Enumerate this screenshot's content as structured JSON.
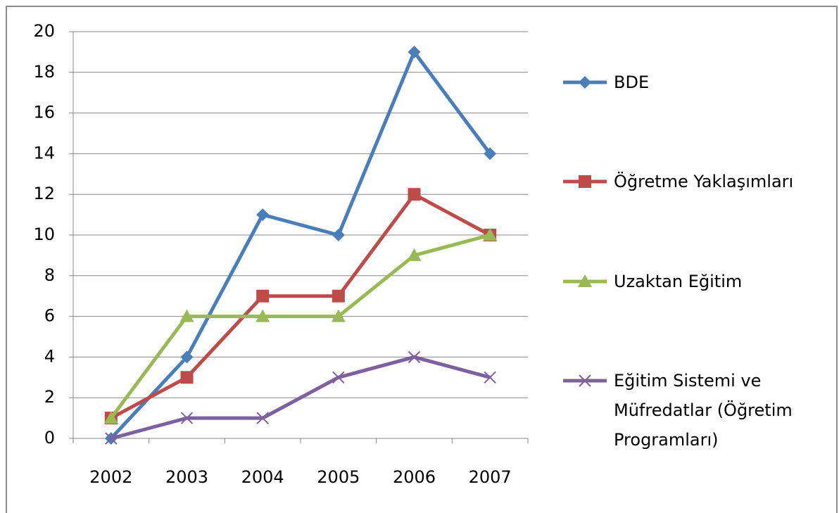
{
  "chart_data": {
    "type": "line",
    "categories": [
      "2002",
      "2003",
      "2004",
      "2005",
      "2006",
      "2007"
    ],
    "series": [
      {
        "name": "BDE",
        "color": "#4a7ebb",
        "marker": "diamond",
        "values": [
          0,
          4,
          11,
          10,
          19,
          14
        ]
      },
      {
        "name": "Öğretme Yaklaşımları",
        "color": "#be4b48",
        "marker": "square",
        "values": [
          1,
          3,
          7,
          7,
          12,
          10
        ]
      },
      {
        "name": "Uzaktan Eğitim",
        "color": "#98b954",
        "marker": "triangle",
        "values": [
          1,
          6,
          6,
          6,
          9,
          10
        ]
      },
      {
        "name": "Eğitim Sistemi ve Müfredatlar (Öğretim Programları)",
        "color": "#7d60a0",
        "marker": "x",
        "values": [
          0,
          1,
          1,
          3,
          4,
          3
        ]
      }
    ],
    "ylim": [
      0,
      20
    ],
    "yticks": [
      0,
      2,
      4,
      6,
      8,
      10,
      12,
      14,
      16,
      18,
      20
    ],
    "grid": true,
    "legend": "right"
  }
}
